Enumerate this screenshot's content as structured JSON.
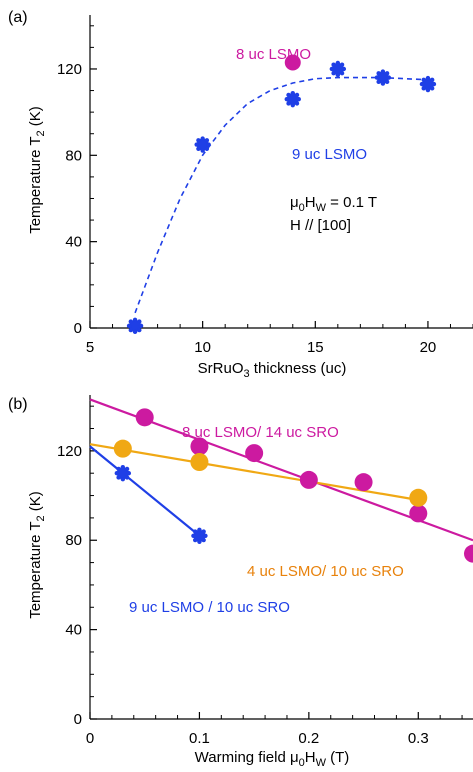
{
  "chart_data": [
    {
      "panel_label": "(a)",
      "type": "scatter",
      "xlabel": "SrRuO3 thickness (uc)",
      "ylabel": "Temperature T2 (K)",
      "xlim": [
        5,
        22
      ],
      "ylim": [
        0,
        145
      ],
      "xticks": [
        "5",
        "10",
        "15",
        "20"
      ],
      "yticks": [
        "0",
        "40",
        "80",
        "120"
      ],
      "series": [
        {
          "name": "9 uc LSMO",
          "color": "#1f3fe6",
          "marker": "circle-star",
          "points": [
            {
              "x": 7,
              "y": 1
            },
            {
              "x": 10,
              "y": 85
            },
            {
              "x": 14,
              "y": 106
            },
            {
              "x": 16,
              "y": 120
            },
            {
              "x": 18,
              "y": 116
            },
            {
              "x": 20,
              "y": 113
            }
          ],
          "fit": {
            "style": "dashed",
            "points": [
              [
                7,
                7
              ],
              [
                8,
                35
              ],
              [
                9,
                60
              ],
              [
                10,
                80
              ],
              [
                11,
                94
              ],
              [
                12,
                104
              ],
              [
                13,
                110
              ],
              [
                14,
                113.5
              ],
              [
                15,
                115.5
              ],
              [
                16,
                116
              ],
              [
                17,
                116
              ],
              [
                18,
                116
              ],
              [
                19,
                115.5
              ],
              [
                20,
                115
              ]
            ]
          }
        },
        {
          "name": "8 uc LSMO",
          "color": "#cc1aa0",
          "marker": "circle",
          "points": [
            {
              "x": 14,
              "y": 123
            }
          ]
        }
      ],
      "annotations": {
        "series_8": "8 uc LSMO",
        "series_9": "9 uc LSMO",
        "field": "μ0HW = 0.1 T",
        "direction": "H // [100]"
      }
    },
    {
      "panel_label": "(b)",
      "type": "scatter",
      "xlabel": "Warming field μ0HW (T)",
      "ylabel": "Temperature T2 (K)",
      "xlim": [
        0,
        0.35
      ],
      "ylim": [
        0,
        145
      ],
      "xticks": [
        "0",
        "0.1",
        "0.2",
        "0.3"
      ],
      "yticks": [
        "0",
        "40",
        "80",
        "120"
      ],
      "series": [
        {
          "name": "8 uc LSMO/ 14 uc SRO",
          "color": "#cc1aa0",
          "marker": "circle",
          "points": [
            {
              "x": 0.05,
              "y": 135
            },
            {
              "x": 0.1,
              "y": 122
            },
            {
              "x": 0.15,
              "y": 119
            },
            {
              "x": 0.2,
              "y": 107
            },
            {
              "x": 0.25,
              "y": 106
            },
            {
              "x": 0.3,
              "y": 92
            },
            {
              "x": 0.35,
              "y": 74
            }
          ],
          "fit": {
            "style": "solid",
            "points": [
              [
                0,
                143
              ],
              [
                0.35,
                80
              ]
            ]
          }
        },
        {
          "name": "4 uc LSMO/ 10 uc SRO",
          "color": "#f0a814",
          "marker": "circle",
          "points": [
            {
              "x": 0.03,
              "y": 121
            },
            {
              "x": 0.1,
              "y": 115
            },
            {
              "x": 0.3,
              "y": 99
            }
          ],
          "fit": {
            "style": "solid",
            "points": [
              [
                0,
                123
              ],
              [
                0.3,
                98
              ]
            ]
          }
        },
        {
          "name": "9 uc LSMO / 10 uc SRO",
          "color": "#1f3fe6",
          "marker": "circle-star",
          "points": [
            {
              "x": 0.03,
              "y": 110
            },
            {
              "x": 0.1,
              "y": 82
            }
          ],
          "fit": {
            "style": "solid",
            "points": [
              [
                0,
                122
              ],
              [
                0.1,
                82
              ]
            ]
          }
        }
      ],
      "annotations": {
        "series_8": "8 uc LSMO/ 14 uc SRO",
        "series_4": "4 uc LSMO/ 10 uc SRO",
        "series_9": "9 uc LSMO / 10 uc SRO"
      }
    }
  ]
}
